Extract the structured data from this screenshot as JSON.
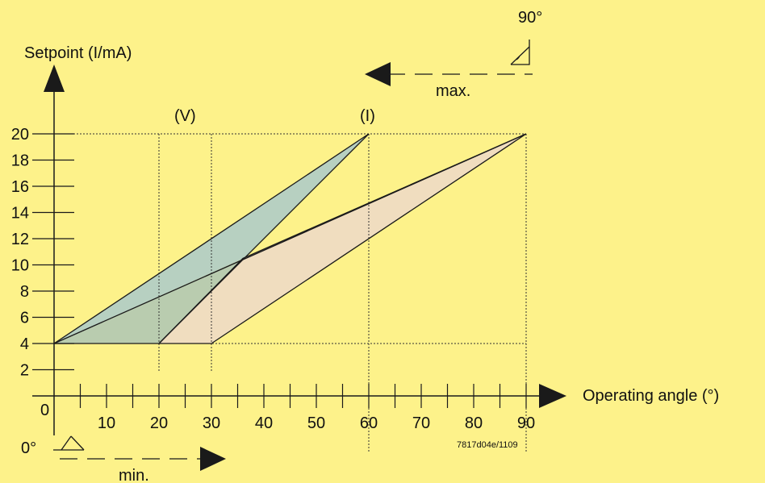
{
  "colors": {
    "background": "#FDF28A",
    "region_blue": "#B7D0C1",
    "region_blue_overlap": "#B9CCAF",
    "region_tan": "#F0DDBF",
    "line": "#1a1a1a"
  },
  "chart_data": {
    "type": "area",
    "ylabel": "Setpoint (I/mA)",
    "xlabel": "Operating angle (°)",
    "x_ticks": [
      10,
      20,
      30,
      40,
      50,
      60,
      70,
      80,
      90
    ],
    "y_ticks": [
      2,
      4,
      6,
      8,
      10,
      12,
      14,
      16,
      18,
      20
    ],
    "origin_label": "0",
    "xlim": [
      0,
      90
    ],
    "ylim": [
      0,
      20
    ],
    "guides": {
      "v_label": "(V)",
      "i_label": "(I)",
      "v_x": [
        20,
        30
      ],
      "i_x": 60,
      "y_levels": [
        4,
        20
      ]
    },
    "regions": [
      {
        "id": "blue",
        "points": [
          [
            0,
            4
          ],
          [
            60,
            20
          ],
          [
            20,
            4
          ]
        ]
      },
      {
        "id": "tan",
        "points": [
          [
            20,
            4
          ],
          [
            36,
            10.5
          ],
          [
            90,
            20
          ],
          [
            30,
            4
          ]
        ]
      }
    ],
    "lines": [
      [
        [
          0,
          4
        ],
        [
          60,
          20
        ]
      ],
      [
        [
          20,
          4
        ],
        [
          60,
          20
        ]
      ],
      [
        [
          0,
          4
        ],
        [
          90,
          20
        ]
      ],
      [
        [
          30,
          4
        ],
        [
          90,
          20
        ]
      ],
      [
        [
          0,
          4
        ],
        [
          30,
          4
        ]
      ]
    ],
    "annotations": {
      "max_angle": "90°",
      "max_label": "max.",
      "min_angle": "0°",
      "min_label": "min.",
      "code": "7817d04e/1109"
    }
  }
}
